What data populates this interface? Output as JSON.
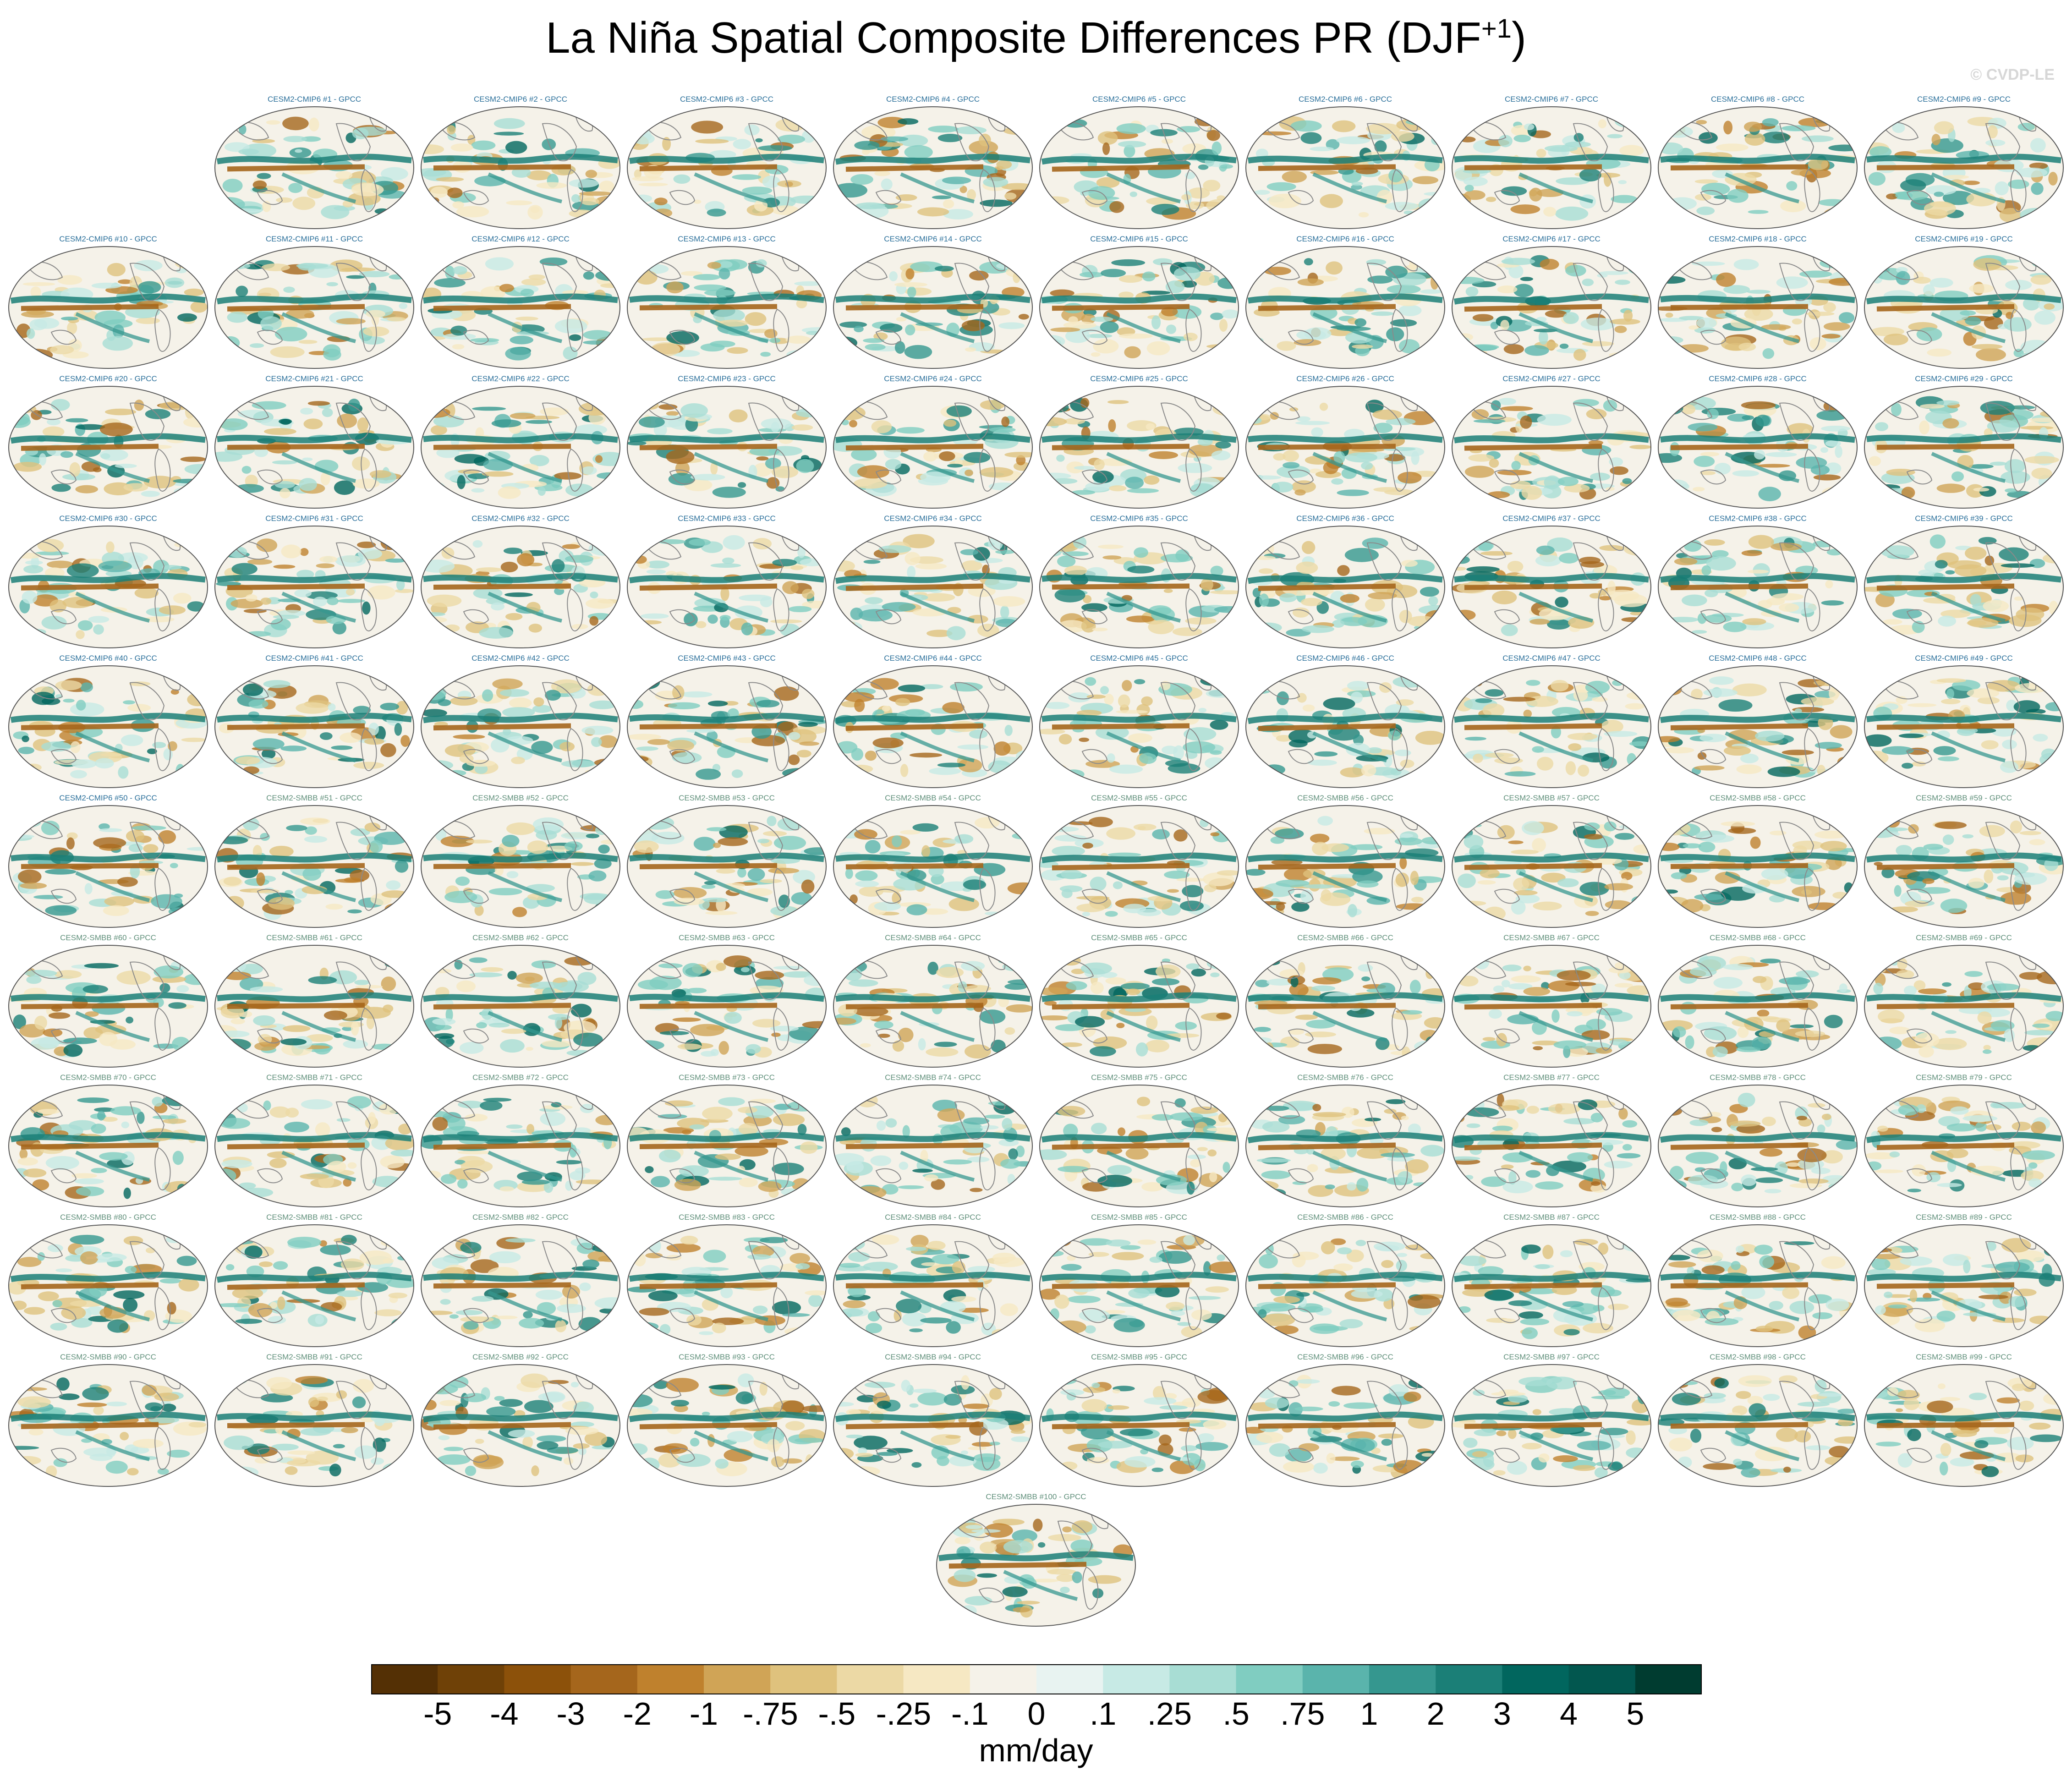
{
  "chart_data": {
    "type": "heatmap",
    "title_main": "La Niña Spatial Composite Differences PR (DJF",
    "title_sup": "+1",
    "title_end": ")",
    "watermark": "© CVDP-LE",
    "units": "mm/day",
    "colorbar": {
      "tick_labels": [
        "-5",
        "-4",
        "-3",
        "-2",
        "-1",
        "-.75",
        "-.5",
        "-.25",
        "-.1",
        "0",
        ".1",
        ".25",
        ".5",
        ".75",
        "1",
        "2",
        "3",
        "4",
        "5"
      ],
      "colors": [
        "#543005",
        "#6f4107",
        "#8c510a",
        "#a5661c",
        "#bf812d",
        "#d0a456",
        "#dfc27d",
        "#ecd9a5",
        "#f6e8c3",
        "#f5f2e9",
        "#e8f3f1",
        "#c7eae5",
        "#a8ddd4",
        "#80cdc1",
        "#5ab4ac",
        "#35978f",
        "#1b7f77",
        "#01665e",
        "#02574f",
        "#003c30"
      ]
    },
    "panel_title_colors": {
      "CMIP6": "#2a6f9a",
      "SMBB": "#5f8f7a"
    },
    "panels": [
      "CESM2-CMIP6 #1 - GPCC",
      "CESM2-CMIP6 #2 - GPCC",
      "CESM2-CMIP6 #3 - GPCC",
      "CESM2-CMIP6 #4 - GPCC",
      "CESM2-CMIP6 #5 - GPCC",
      "CESM2-CMIP6 #6 - GPCC",
      "CESM2-CMIP6 #7 - GPCC",
      "CESM2-CMIP6 #8 - GPCC",
      "CESM2-CMIP6 #9 - GPCC",
      "CESM2-CMIP6 #10 - GPCC",
      "CESM2-CMIP6 #11 - GPCC",
      "CESM2-CMIP6 #12 - GPCC",
      "CESM2-CMIP6 #13 - GPCC",
      "CESM2-CMIP6 #14 - GPCC",
      "CESM2-CMIP6 #15 - GPCC",
      "CESM2-CMIP6 #16 - GPCC",
      "CESM2-CMIP6 #17 - GPCC",
      "CESM2-CMIP6 #18 - GPCC",
      "CESM2-CMIP6 #19 - GPCC",
      "CESM2-CMIP6 #20 - GPCC",
      "CESM2-CMIP6 #21 - GPCC",
      "CESM2-CMIP6 #22 - GPCC",
      "CESM2-CMIP6 #23 - GPCC",
      "CESM2-CMIP6 #24 - GPCC",
      "CESM2-CMIP6 #25 - GPCC",
      "CESM2-CMIP6 #26 - GPCC",
      "CESM2-CMIP6 #27 - GPCC",
      "CESM2-CMIP6 #28 - GPCC",
      "CESM2-CMIP6 #29 - GPCC",
      "CESM2-CMIP6 #30 - GPCC",
      "CESM2-CMIP6 #31 - GPCC",
      "CESM2-CMIP6 #32 - GPCC",
      "CESM2-CMIP6 #33 - GPCC",
      "CESM2-CMIP6 #34 - GPCC",
      "CESM2-CMIP6 #35 - GPCC",
      "CESM2-CMIP6 #36 - GPCC",
      "CESM2-CMIP6 #37 - GPCC",
      "CESM2-CMIP6 #38 - GPCC",
      "CESM2-CMIP6 #39 - GPCC",
      "CESM2-CMIP6 #40 - GPCC",
      "CESM2-CMIP6 #41 - GPCC",
      "CESM2-CMIP6 #42 - GPCC",
      "CESM2-CMIP6 #43 - GPCC",
      "CESM2-CMIP6 #44 - GPCC",
      "CESM2-CMIP6 #45 - GPCC",
      "CESM2-CMIP6 #46 - GPCC",
      "CESM2-CMIP6 #47 - GPCC",
      "CESM2-CMIP6 #48 - GPCC",
      "CESM2-CMIP6 #49 - GPCC",
      "CESM2-CMIP6 #50 - GPCC",
      "CESM2-SMBB #51 - GPCC",
      "CESM2-SMBB #52 - GPCC",
      "CESM2-SMBB #53 - GPCC",
      "CESM2-SMBB #54 - GPCC",
      "CESM2-SMBB #55 - GPCC",
      "CESM2-SMBB #56 - GPCC",
      "CESM2-SMBB #57 - GPCC",
      "CESM2-SMBB #58 - GPCC",
      "CESM2-SMBB #59 - GPCC",
      "CESM2-SMBB #60 - GPCC",
      "CESM2-SMBB #61 - GPCC",
      "CESM2-SMBB #62 - GPCC",
      "CESM2-SMBB #63 - GPCC",
      "CESM2-SMBB #64 - GPCC",
      "CESM2-SMBB #65 - GPCC",
      "CESM2-SMBB #66 - GPCC",
      "CESM2-SMBB #67 - GPCC",
      "CESM2-SMBB #68 - GPCC",
      "CESM2-SMBB #69 - GPCC",
      "CESM2-SMBB #70 - GPCC",
      "CESM2-SMBB #71 - GPCC",
      "CESM2-SMBB #72 - GPCC",
      "CESM2-SMBB #73 - GPCC",
      "CESM2-SMBB #74 - GPCC",
      "CESM2-SMBB #75 - GPCC",
      "CESM2-SMBB #76 - GPCC",
      "CESM2-SMBB #77 - GPCC",
      "CESM2-SMBB #78 - GPCC",
      "CESM2-SMBB #79 - GPCC",
      "CESM2-SMBB #80 - GPCC",
      "CESM2-SMBB #81 - GPCC",
      "CESM2-SMBB #82 - GPCC",
      "CESM2-SMBB #83 - GPCC",
      "CESM2-SMBB #84 - GPCC",
      "CESM2-SMBB #85 - GPCC",
      "CESM2-SMBB #86 - GPCC",
      "CESM2-SMBB #87 - GPCC",
      "CESM2-SMBB #88 - GPCC",
      "CESM2-SMBB #89 - GPCC",
      "CESM2-SMBB #90 - GPCC",
      "CESM2-SMBB #91 - GPCC",
      "CESM2-SMBB #92 - GPCC",
      "CESM2-SMBB #93 - GPCC",
      "CESM2-SMBB #94 - GPCC",
      "CESM2-SMBB #95 - GPCC",
      "CESM2-SMBB #96 - GPCC",
      "CESM2-SMBB #97 - GPCC",
      "CESM2-SMBB #98 - GPCC",
      "CESM2-SMBB #99 - GPCC",
      "CESM2-SMBB #100 - GPCC"
    ]
  }
}
